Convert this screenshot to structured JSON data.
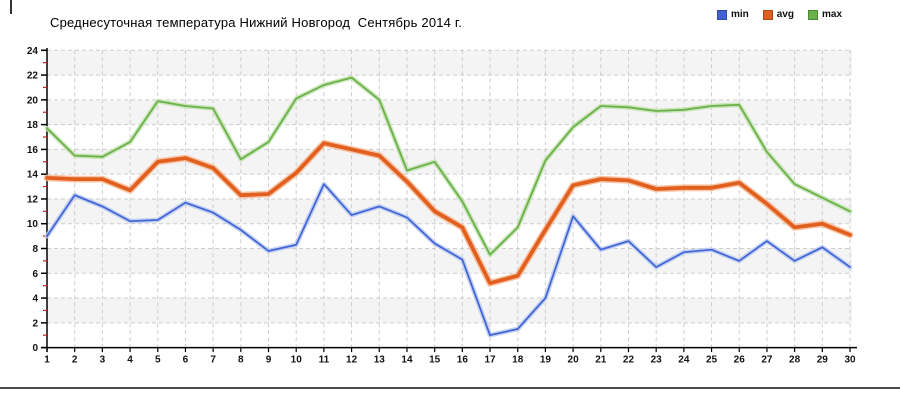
{
  "chart_data": {
    "type": "line",
    "title": "Среднесуточная температура Нижний Новгород  Сентябрь 2014 г.",
    "x": [
      1,
      2,
      3,
      4,
      5,
      6,
      7,
      8,
      9,
      10,
      11,
      12,
      13,
      14,
      15,
      16,
      17,
      18,
      19,
      20,
      21,
      22,
      23,
      24,
      25,
      26,
      27,
      28,
      29,
      30
    ],
    "series": [
      {
        "name": "min",
        "color": "#3f63d6",
        "halo": "#bac9f0",
        "width": 1.7,
        "values": [
          9.0,
          12.3,
          11.4,
          10.2,
          10.3,
          11.7,
          10.9,
          9.5,
          7.8,
          8.3,
          13.2,
          10.7,
          11.4,
          10.5,
          8.4,
          7.1,
          1.0,
          1.5,
          4.0,
          10.6,
          7.9,
          8.6,
          6.5,
          7.7,
          7.9,
          7.0,
          8.6,
          7.0,
          8.1,
          6.5
        ]
      },
      {
        "name": "avg",
        "color": "#e2601f",
        "halo": "#f6bb96",
        "width": 3.8,
        "values": [
          13.7,
          13.6,
          13.6,
          12.7,
          15.0,
          15.3,
          14.5,
          12.3,
          12.4,
          14.1,
          16.5,
          16.0,
          15.5,
          13.4,
          11.0,
          9.7,
          5.2,
          5.8,
          9.5,
          13.1,
          13.6,
          13.5,
          12.8,
          12.9,
          12.9,
          13.3,
          11.6,
          9.7,
          10.0,
          9.1
        ]
      },
      {
        "name": "max",
        "color": "#6bb14a",
        "halo": "#c3e2b0",
        "width": 1.8,
        "values": [
          17.7,
          15.5,
          15.4,
          16.6,
          19.9,
          19.5,
          19.3,
          15.2,
          16.6,
          20.1,
          21.2,
          21.8,
          20.0,
          14.3,
          15.0,
          11.8,
          7.5,
          9.7,
          15.1,
          17.8,
          19.5,
          19.4,
          19.1,
          19.2,
          19.5,
          19.6,
          15.8,
          13.2,
          12.1,
          11.0
        ]
      }
    ],
    "ylim": [
      0,
      24
    ],
    "y_major_ticks": [
      0,
      2,
      4,
      6,
      8,
      10,
      12,
      14,
      16,
      18,
      20,
      22,
      24
    ],
    "y_minor_ticks": [
      1,
      3,
      5,
      7,
      9,
      11,
      13,
      15,
      17,
      19,
      21,
      23
    ],
    "grid": "dashed vertical per day and horizontal per 2 degrees",
    "stripe_bands": [
      [
        2,
        4
      ],
      [
        6,
        8
      ],
      [
        10,
        12
      ],
      [
        14,
        16
      ],
      [
        18,
        20
      ],
      [
        22,
        24
      ]
    ],
    "legend_position": "top-right",
    "colors": {
      "axis": "#000000",
      "grid": "#cdcdcd",
      "stripe": "#f4f4f4",
      "minor_tick": "#cc2222",
      "tick_label": "#111111",
      "bottom_rule": "#4b4b4b"
    }
  }
}
